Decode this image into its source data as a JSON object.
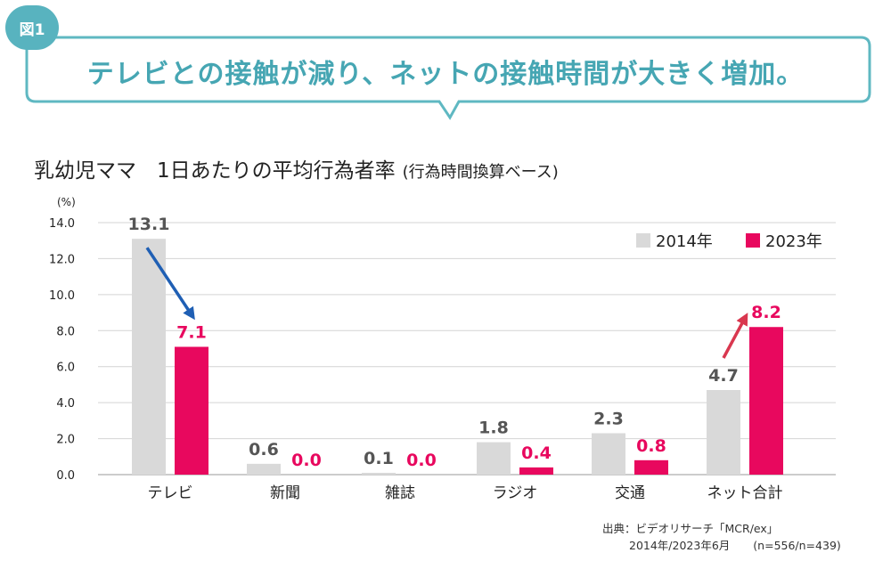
{
  "badge": "図1",
  "headline": "テレビとの接触が減り、ネットの接触時間が大きく増加。",
  "chart_title": "乳幼児ママ　1日あたりの平均行為者率",
  "chart_subtitle": "(行為時間換算ベース)",
  "source": {
    "line1": "出典：ビデオリサーチ「MCR/ex」",
    "line2": "2014年/2023年6月",
    "sample": "(n=556/n=439)"
  },
  "colors": {
    "series_2014": "#d9d9d9",
    "series_2023": "#e8085e",
    "bubble_border": "#5fb8c2",
    "headline": "#46a6b3",
    "arrow_down": "#1f5fb4",
    "arrow_up": "#d9374f"
  },
  "chart_data": {
    "type": "bar",
    "title": "乳幼児ママ　1日あたりの平均行為者率",
    "ylabel": "(%)",
    "ylim": [
      0,
      14
    ],
    "yticks": [
      "0.0",
      "2.0",
      "4.0",
      "6.0",
      "8.0",
      "10.0",
      "12.0",
      "14.0"
    ],
    "categories": [
      "テレビ",
      "新聞",
      "雑誌",
      "ラジオ",
      "交通",
      "ネット合計"
    ],
    "series": [
      {
        "name": "2014年",
        "values": [
          13.1,
          0.6,
          0.1,
          1.8,
          2.3,
          4.7
        ],
        "labels": [
          "13.1",
          "0.6",
          "0.1",
          "1.8",
          "2.3",
          "4.7"
        ]
      },
      {
        "name": "2023年",
        "values": [
          7.1,
          0.0,
          0.0,
          0.4,
          0.8,
          8.2
        ],
        "labels": [
          "7.1",
          "0.0",
          "0.0",
          "0.4",
          "0.8",
          "8.2"
        ]
      }
    ],
    "grid": true,
    "legend": "top-right"
  }
}
